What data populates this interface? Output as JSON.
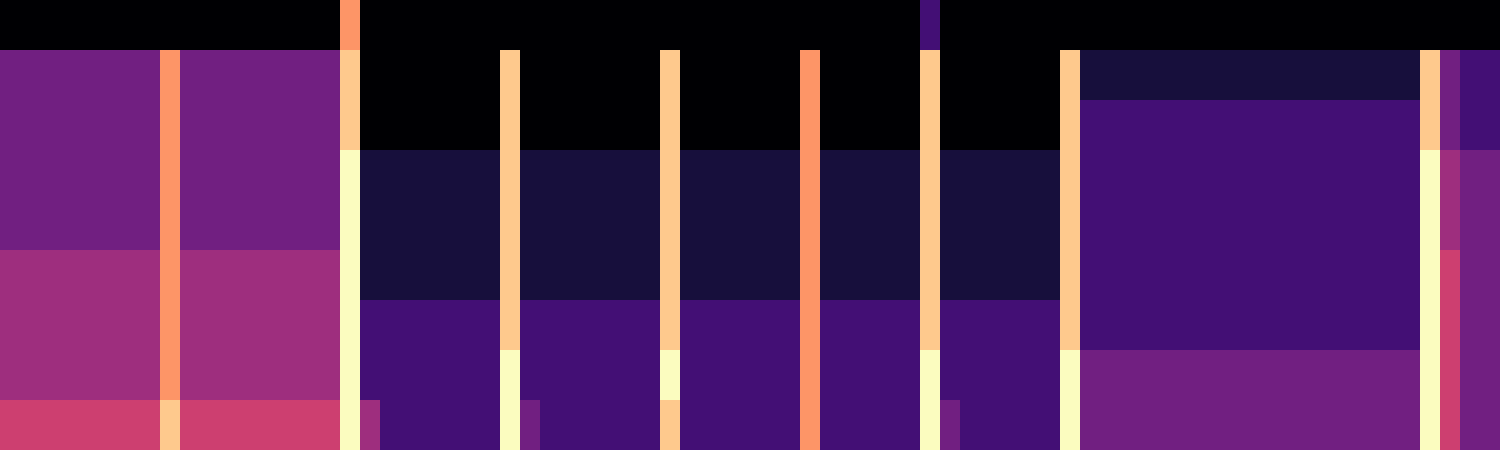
{
  "chart_data": {
    "type": "heatmap",
    "tick_labels": false,
    "cells": [
      [
        0,
        0,
        0,
        0,
        0,
        0,
        0,
        0,
        0,
        0,
        0,
        0,
        0,
        0,
        0,
        0,
        0,
        7,
        0,
        0,
        0,
        0,
        0,
        0,
        0,
        0,
        0,
        0,
        0,
        0,
        0,
        0,
        0,
        0,
        0,
        0,
        0,
        0,
        0,
        0,
        0,
        0,
        0,
        0,
        0,
        0,
        2,
        0,
        0,
        0,
        0,
        0,
        0,
        0,
        0,
        0,
        0,
        0,
        0,
        0,
        0,
        0,
        0,
        0,
        0,
        0,
        0,
        0,
        0,
        0,
        0,
        0,
        0,
        0,
        0
      ],
      [
        3,
        3,
        3,
        3,
        3,
        3,
        3,
        3,
        7,
        3,
        3,
        3,
        3,
        3,
        3,
        3,
        3,
        8,
        0,
        0,
        0,
        0,
        0,
        0,
        0,
        8,
        0,
        0,
        0,
        0,
        0,
        0,
        0,
        8,
        0,
        0,
        0,
        0,
        0,
        0,
        7,
        0,
        0,
        0,
        0,
        0,
        8,
        0,
        0,
        0,
        0,
        0,
        0,
        8,
        1,
        1,
        1,
        1,
        1,
        1,
        1,
        1,
        1,
        1,
        1,
        1,
        1,
        1,
        1,
        1,
        1,
        8,
        3,
        2,
        2
      ],
      [
        3,
        3,
        3,
        3,
        3,
        3,
        3,
        3,
        7,
        3,
        3,
        3,
        3,
        3,
        3,
        3,
        3,
        8,
        0,
        0,
        0,
        0,
        0,
        0,
        0,
        8,
        0,
        0,
        0,
        0,
        0,
        0,
        0,
        8,
        0,
        0,
        0,
        0,
        0,
        0,
        7,
        0,
        0,
        0,
        0,
        0,
        8,
        0,
        0,
        0,
        0,
        0,
        0,
        8,
        2,
        2,
        2,
        2,
        2,
        2,
        2,
        2,
        2,
        2,
        2,
        2,
        2,
        2,
        2,
        2,
        2,
        8,
        3,
        2,
        2
      ],
      [
        3,
        3,
        3,
        3,
        3,
        3,
        3,
        3,
        7,
        3,
        3,
        3,
        3,
        3,
        3,
        3,
        3,
        9,
        1,
        1,
        1,
        1,
        1,
        1,
        1,
        8,
        1,
        1,
        1,
        1,
        1,
        1,
        1,
        8,
        1,
        1,
        1,
        1,
        1,
        1,
        7,
        1,
        1,
        1,
        1,
        1,
        8,
        1,
        1,
        1,
        1,
        1,
        1,
        8,
        2,
        2,
        2,
        2,
        2,
        2,
        2,
        2,
        2,
        2,
        2,
        2,
        2,
        2,
        2,
        2,
        2,
        9,
        4,
        3,
        3
      ],
      [
        3,
        3,
        3,
        3,
        3,
        3,
        3,
        3,
        7,
        3,
        3,
        3,
        3,
        3,
        3,
        3,
        3,
        9,
        1,
        1,
        1,
        1,
        1,
        1,
        1,
        8,
        1,
        1,
        1,
        1,
        1,
        1,
        1,
        8,
        1,
        1,
        1,
        1,
        1,
        1,
        7,
        1,
        1,
        1,
        1,
        1,
        8,
        1,
        1,
        1,
        1,
        1,
        1,
        8,
        2,
        2,
        2,
        2,
        2,
        2,
        2,
        2,
        2,
        2,
        2,
        2,
        2,
        2,
        2,
        2,
        2,
        9,
        4,
        3,
        3
      ],
      [
        4,
        4,
        4,
        4,
        4,
        4,
        4,
        4,
        7,
        4,
        4,
        4,
        4,
        4,
        4,
        4,
        4,
        9,
        1,
        1,
        1,
        1,
        1,
        1,
        1,
        8,
        1,
        1,
        1,
        1,
        1,
        1,
        1,
        8,
        1,
        1,
        1,
        1,
        1,
        1,
        7,
        1,
        1,
        1,
        1,
        1,
        8,
        1,
        1,
        1,
        1,
        1,
        1,
        8,
        2,
        2,
        2,
        2,
        2,
        2,
        2,
        2,
        2,
        2,
        2,
        2,
        2,
        2,
        2,
        2,
        2,
        9,
        5,
        3,
        3
      ],
      [
        4,
        4,
        4,
        4,
        4,
        4,
        4,
        4,
        7,
        4,
        4,
        4,
        4,
        4,
        4,
        4,
        4,
        9,
        2,
        2,
        2,
        2,
        2,
        2,
        2,
        8,
        2,
        2,
        2,
        2,
        2,
        2,
        2,
        8,
        2,
        2,
        2,
        2,
        2,
        2,
        7,
        2,
        2,
        2,
        2,
        2,
        8,
        2,
        2,
        2,
        2,
        2,
        2,
        8,
        2,
        2,
        2,
        2,
        2,
        2,
        2,
        2,
        2,
        2,
        2,
        2,
        2,
        2,
        2,
        2,
        2,
        9,
        5,
        3,
        3
      ],
      [
        4,
        4,
        4,
        4,
        4,
        4,
        4,
        4,
        7,
        4,
        4,
        4,
        4,
        4,
        4,
        4,
        4,
        9,
        2,
        2,
        2,
        2,
        2,
        2,
        2,
        9,
        2,
        2,
        2,
        2,
        2,
        2,
        2,
        9,
        2,
        2,
        2,
        2,
        2,
        2,
        7,
        2,
        2,
        2,
        2,
        2,
        9,
        2,
        2,
        2,
        2,
        2,
        2,
        9,
        3,
        3,
        3,
        3,
        3,
        3,
        3,
        3,
        3,
        3,
        3,
        3,
        3,
        3,
        3,
        3,
        3,
        9,
        5,
        3,
        3
      ],
      [
        5,
        5,
        5,
        5,
        5,
        5,
        5,
        5,
        8,
        5,
        5,
        5,
        5,
        5,
        5,
        5,
        5,
        9,
        4,
        2,
        2,
        2,
        2,
        2,
        2,
        9,
        3,
        2,
        2,
        2,
        2,
        2,
        2,
        8,
        2,
        2,
        2,
        2,
        2,
        2,
        7,
        2,
        2,
        2,
        2,
        2,
        9,
        3,
        2,
        2,
        2,
        2,
        2,
        9,
        3,
        3,
        3,
        3,
        3,
        3,
        3,
        3,
        3,
        3,
        3,
        3,
        3,
        3,
        3,
        3,
        3,
        9,
        5,
        3,
        3
      ]
    ]
  }
}
